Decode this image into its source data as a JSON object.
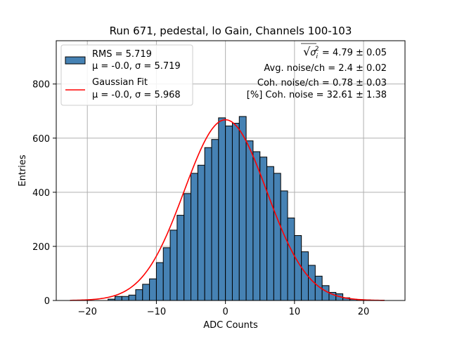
{
  "chart_data": {
    "type": "bar",
    "title": "Run 671, pedestal, lo Gain, Channels 100-103",
    "xlabel": "ADC Counts",
    "ylabel": "Entries",
    "xlim": [
      -24.5,
      26
    ],
    "ylim": [
      0,
      960
    ],
    "xticks": [
      -20,
      -10,
      0,
      10,
      20
    ],
    "yticks": [
      0,
      200,
      400,
      600,
      800
    ],
    "grid": true,
    "legend_position": "top-left",
    "colors": {
      "bars": "#4682b4",
      "bar_edge": "#000000",
      "fit": "#ff0000",
      "grid": "#b0b0b0"
    },
    "histogram": {
      "name": "RMS = 5.719",
      "stats_label": "μ = -0.0, σ = 5.719",
      "bin_width": 1,
      "bin_edges_start": -17,
      "counts": [
        5,
        15,
        15,
        20,
        40,
        60,
        80,
        140,
        195,
        260,
        315,
        395,
        470,
        500,
        565,
        595,
        675,
        645,
        655,
        680,
        590,
        550,
        530,
        495,
        470,
        405,
        305,
        240,
        180,
        130,
        90,
        55,
        30,
        25,
        10,
        5,
        3,
        2,
        1,
        1
      ]
    },
    "fit": {
      "name": "Gaussian Fit",
      "stats_label": "μ = -0.0, σ = 5.968",
      "mu": 0.0,
      "sigma": 5.968,
      "amplitude": 668,
      "x_range": [
        -22.5,
        23
      ]
    },
    "annotations": [
      {
        "prefix": "√",
        "symbol": "σ",
        "subscript": "i",
        "superscript": "2",
        "text": " = 4.79 ± 0.05"
      },
      {
        "text": "Avg. noise/ch = 2.4 ± 0.02"
      },
      {
        "text": "Coh. noise/ch = 0.78 ± 0.03"
      },
      {
        "text": "[%] Coh. noise = 32.61 ± 1.38"
      }
    ]
  }
}
